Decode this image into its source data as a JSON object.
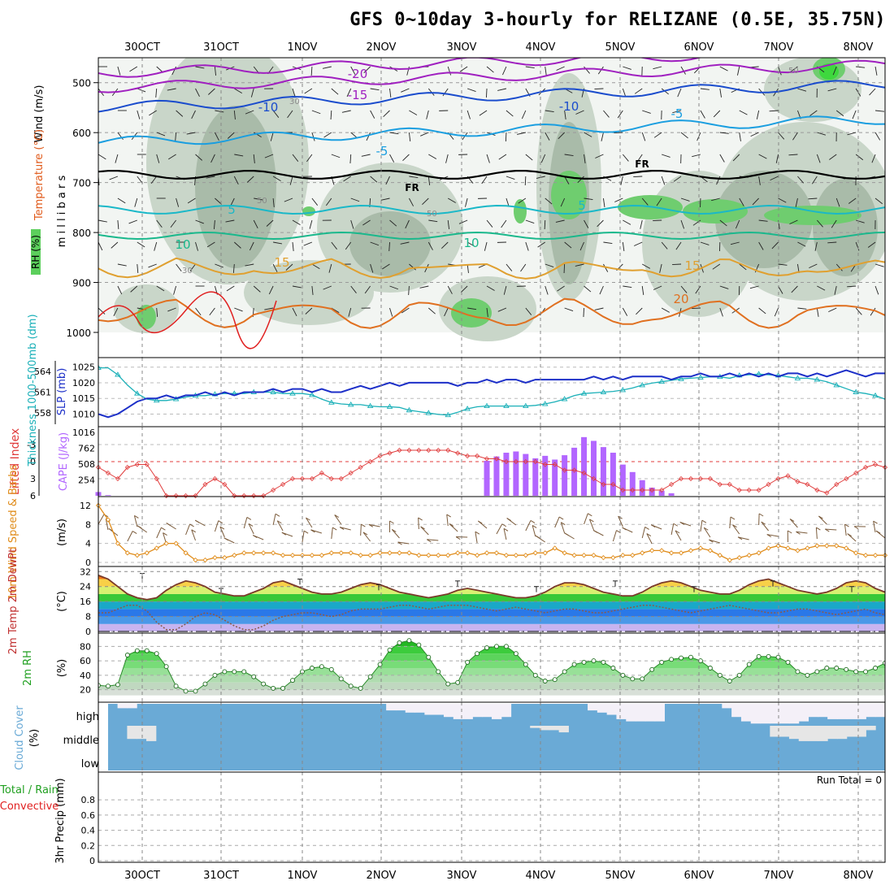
{
  "title": "GFS 0~10day 3-hourly for RELIZANE (0.5E, 35.75N)",
  "dates": [
    "30OCT",
    "31OCT",
    "1NOV",
    "2NOV",
    "3NOV",
    "4NOV",
    "5NOV",
    "6NOV",
    "7NOV",
    "8NOV"
  ],
  "colors": {
    "slp": "#1c2fc8",
    "thickness": "#1ab0b8",
    "lifted": "#e03c3c",
    "cape": "#b266ff",
    "wind": "#e08c1a",
    "barb": "#7a5a3a",
    "rh2m": "#33bb33",
    "cloud": "#6aaad6",
    "cloud_clear": "#f4f0f8",
    "cloud_mid": "#e6e6e6"
  },
  "chart_data": [
    {
      "type": "contour",
      "name": "upper-air cross section",
      "ylabel": "millibars",
      "side_labels": [
        "Wind (m/s)",
        "Temperature (°C)",
        "RH (%)"
      ],
      "levels": [
        500,
        600,
        700,
        800,
        900,
        1000
      ],
      "ylim": [
        450,
        1000
      ],
      "temperature_contours": [
        {
          "label": "-20",
          "values": [
            -20
          ]
        },
        {
          "label": "-15",
          "values": [
            -15
          ]
        },
        {
          "label": "-10",
          "values": [
            -10
          ]
        },
        {
          "label": "-5",
          "values": [
            -5
          ]
        },
        {
          "label": "FR",
          "values": [
            0
          ]
        },
        {
          "label": "5",
          "values": [
            5
          ]
        },
        {
          "label": "10",
          "values": [
            10
          ]
        },
        {
          "label": "15",
          "values": [
            15
          ]
        },
        {
          "label": "20",
          "values": [
            20
          ]
        }
      ],
      "rh_labels": [
        "30",
        "50"
      ]
    },
    {
      "type": "line",
      "name": "SLP and Thickness",
      "ylabel": "SLP (mb)",
      "ylabel2": "Thickness 1000-500mb (dm)",
      "yticks": [
        1010,
        1015,
        1020,
        1025
      ],
      "yticks2": [
        558,
        561,
        564
      ],
      "ylim": [
        1007,
        1027
      ],
      "series": [
        {
          "name": "SLP",
          "values": [
            1010,
            1009,
            1010,
            1012,
            1014,
            1015,
            1015,
            1016,
            1015,
            1016,
            1016,
            1017,
            1016,
            1017,
            1016,
            1017,
            1017,
            1017,
            1018,
            1017,
            1018,
            1018,
            1017,
            1018,
            1017,
            1017,
            1018,
            1019,
            1018,
            1019,
            1020,
            1019,
            1020,
            1020,
            1020,
            1020,
            1020,
            1019,
            1020,
            1020,
            1021,
            1020,
            1021,
            1021,
            1020,
            1021,
            1021,
            1021,
            1021,
            1021,
            1021,
            1022,
            1021,
            1022,
            1021,
            1022,
            1022,
            1022,
            1022,
            1021,
            1022,
            1022,
            1023,
            1022,
            1022,
            1023,
            1022,
            1023,
            1022,
            1023,
            1022,
            1023,
            1023,
            1022,
            1023,
            1022,
            1023,
            1024,
            1023,
            1022,
            1023,
            1023
          ]
        },
        {
          "name": "Thickness",
          "values": [
            564.5,
            564.5,
            563.5,
            562,
            560.8,
            560,
            559.8,
            559.8,
            560,
            560.3,
            560.5,
            560.5,
            560.7,
            560.8,
            560.8,
            560.8,
            561,
            561,
            561,
            560.8,
            560.8,
            560.8,
            560.6,
            560,
            559.5,
            559.3,
            559.2,
            559.2,
            559,
            558.9,
            558.9,
            558.8,
            558.4,
            558.2,
            558,
            557.8,
            557.7,
            558.1,
            558.6,
            558.9,
            559,
            559,
            559,
            559,
            559,
            559.1,
            559.3,
            559.6,
            560,
            560.5,
            560.8,
            560.9,
            561,
            561.1,
            561.3,
            561.6,
            562,
            562.3,
            562.5,
            562.7,
            562.9,
            563,
            563.1,
            563.2,
            563.2,
            563,
            563.4,
            563.5,
            563.6,
            563.5,
            563.4,
            563.2,
            563,
            563,
            562.8,
            562.5,
            562,
            561.5,
            561,
            560.8,
            560.5,
            560
          ]
        }
      ]
    },
    {
      "type": "bar",
      "name": "Lifted Index and CAPE",
      "ylabel": "Lifted Index",
      "ylabel2": "CAPE (J/kg)",
      "yticks": [
        -3,
        0,
        3,
        6
      ],
      "yticks_labels": [
        "-3",
        "0",
        "3",
        "6"
      ],
      "cape_ticks": [
        254,
        508,
        762,
        1016
      ],
      "series": [
        {
          "name": "CAPE",
          "values": [
            60,
            10,
            0,
            0,
            0,
            0,
            0,
            0,
            0,
            0,
            0,
            0,
            0,
            0,
            0,
            0,
            0,
            0,
            0,
            0,
            0,
            0,
            0,
            0,
            0,
            0,
            0,
            0,
            0,
            0,
            0,
            0,
            0,
            0,
            0,
            0,
            0,
            0,
            0,
            0,
            560,
            630,
            690,
            710,
            670,
            600,
            640,
            580,
            650,
            770,
            940,
            880,
            780,
            690,
            500,
            380,
            250,
            130,
            80,
            40,
            0,
            0,
            0,
            0,
            0,
            0,
            0,
            0,
            0,
            0,
            0,
            0,
            0,
            0,
            0,
            0,
            0,
            0,
            0,
            0,
            0,
            0
          ]
        },
        {
          "name": "Lifted Index",
          "values": [
            1,
            2,
            3,
            1,
            0.5,
            0.5,
            3,
            6,
            6,
            7,
            6,
            4,
            3,
            4,
            6,
            7,
            7,
            6,
            5,
            4,
            3,
            3,
            3,
            2,
            3,
            3,
            2,
            1,
            0,
            -1,
            -1.5,
            -2,
            -2,
            -2,
            -2,
            -2,
            -2,
            -1.5,
            -1,
            -1,
            -0.5,
            -0.5,
            0,
            0,
            0,
            0,
            0.5,
            0.5,
            1.5,
            1.5,
            2,
            3,
            4,
            4,
            5,
            5,
            5,
            5,
            5,
            4,
            3,
            3,
            3,
            3,
            4,
            4,
            5,
            5,
            5,
            4,
            3,
            2.5,
            3.5,
            4,
            5,
            5.5,
            4,
            3,
            2,
            1,
            0.5,
            1
          ]
        }
      ]
    },
    {
      "type": "line",
      "name": "10m Wind Speed & Barbs",
      "ylabel": "(m/s)",
      "yticks": [
        0,
        4,
        8,
        12
      ],
      "ylim": [
        0,
        12.5
      ],
      "values": [
        12,
        9,
        4,
        2,
        1.5,
        2,
        3,
        4,
        4,
        2,
        0.5,
        0.5,
        1,
        1,
        1.5,
        2,
        2,
        2,
        2,
        1.5,
        1.5,
        1.5,
        1.5,
        1.5,
        2,
        2,
        2,
        1.5,
        1.5,
        2,
        2,
        2,
        2,
        1.5,
        1.5,
        1.5,
        1.5,
        2,
        2,
        1.5,
        2,
        2,
        1.5,
        1.5,
        1.5,
        2,
        2,
        3,
        2,
        1.5,
        1.5,
        1.5,
        1,
        1,
        1.5,
        1.5,
        2,
        2.5,
        2.5,
        2,
        2,
        2.5,
        3,
        2.5,
        1.5,
        0.5,
        1,
        1.5,
        2,
        3,
        3.5,
        3,
        2.5,
        3,
        3.5,
        3.5,
        3.5,
        3,
        2,
        1.5,
        1.5,
        1.5
      ]
    },
    {
      "type": "area",
      "name": "2m Temp 2m DewPt",
      "ylabel": "(°C)",
      "yticks": [
        0,
        8,
        16,
        24,
        32
      ],
      "ylim": [
        0,
        33
      ],
      "series": [
        {
          "name": "2m Temp",
          "values": [
            30,
            28,
            24,
            20,
            18,
            17,
            18,
            22,
            25,
            27,
            26,
            24,
            21,
            20,
            19,
            19,
            21,
            23,
            26,
            27,
            25,
            23,
            21,
            20,
            20,
            21,
            23,
            25,
            26,
            25,
            23,
            21,
            20,
            19,
            18,
            19,
            20,
            22,
            23,
            22,
            21,
            20,
            19,
            18,
            18,
            19,
            21,
            24,
            26,
            26,
            25,
            23,
            21,
            20,
            19,
            19,
            21,
            24,
            26,
            27,
            26,
            24,
            22,
            21,
            20,
            20,
            22,
            25,
            27,
            28,
            26,
            24,
            22,
            21,
            20,
            21,
            23,
            26,
            27,
            26,
            23,
            21
          ]
        },
        {
          "name": "2m DewPt",
          "values": [
            10,
            10,
            12,
            14,
            14,
            11,
            5,
            1,
            1,
            4,
            8,
            10,
            9,
            6,
            3,
            1,
            1,
            3,
            6,
            8,
            9,
            10,
            10,
            9,
            8,
            9,
            11,
            12,
            12,
            12,
            13,
            14,
            14,
            13,
            12,
            13,
            14,
            14,
            14,
            13,
            12,
            11,
            12,
            13,
            12,
            11,
            10,
            11,
            12,
            12,
            11,
            10,
            10,
            11,
            12,
            13,
            14,
            14,
            13,
            12,
            11,
            10,
            11,
            12,
            13,
            14,
            13,
            12,
            11,
            10,
            10,
            11,
            12,
            12,
            11,
            10,
            9,
            10,
            11,
            12,
            10,
            9
          ]
        },
        {
          "name": "Temp Min/Max",
          "values": [
            28,
            20,
            25,
            22,
            24,
            21,
            24,
            21,
            24,
            21
          ]
        }
      ]
    },
    {
      "type": "area",
      "name": "2m RH",
      "ylabel": "(%)",
      "yticks": [
        20,
        40,
        60,
        80
      ],
      "ylim": [
        5,
        95
      ],
      "values": [
        26,
        25,
        27,
        68,
        74,
        74,
        70,
        52,
        25,
        18,
        18,
        28,
        40,
        45,
        45,
        45,
        38,
        28,
        22,
        22,
        33,
        45,
        50,
        52,
        48,
        35,
        25,
        22,
        38,
        55,
        75,
        85,
        88,
        82,
        65,
        45,
        28,
        30,
        58,
        70,
        78,
        80,
        80,
        70,
        55,
        40,
        32,
        34,
        45,
        55,
        58,
        60,
        58,
        50,
        40,
        35,
        35,
        48,
        58,
        62,
        64,
        65,
        60,
        50,
        40,
        32,
        40,
        55,
        66,
        66,
        65,
        58,
        45,
        40,
        45,
        50,
        50,
        48,
        45,
        45,
        50,
        57
      ]
    },
    {
      "type": "heatmap",
      "name": "Cloud Cover",
      "ylabel": "(%)",
      "rows": [
        "high",
        "middle",
        "low"
      ],
      "high": [
        100,
        100,
        80,
        80,
        100,
        100,
        100,
        100,
        100,
        100,
        100,
        100,
        100,
        100,
        100,
        100,
        100,
        100,
        100,
        100,
        100,
        100,
        100,
        100,
        100,
        100,
        100,
        100,
        100,
        100,
        70,
        70,
        60,
        60,
        50,
        50,
        40,
        30,
        30,
        40,
        40,
        30,
        40,
        100,
        100,
        100,
        100,
        100,
        100,
        100,
        100,
        70,
        60,
        50,
        30,
        20,
        20,
        20,
        20,
        100,
        100,
        100,
        100,
        100,
        100,
        80,
        40,
        20,
        10,
        10,
        10,
        10,
        10,
        20,
        40,
        40,
        30,
        30,
        30,
        30,
        40,
        40
      ],
      "middle": [
        100,
        100,
        100,
        40,
        40,
        30,
        100,
        100,
        100,
        100,
        100,
        100,
        100,
        100,
        100,
        100,
        100,
        100,
        100,
        100,
        100,
        100,
        100,
        100,
        100,
        100,
        100,
        100,
        100,
        100,
        100,
        100,
        100,
        100,
        100,
        100,
        100,
        100,
        100,
        100,
        100,
        100,
        100,
        100,
        100,
        90,
        80,
        80,
        70,
        100,
        100,
        100,
        100,
        100,
        100,
        100,
        100,
        100,
        100,
        100,
        100,
        100,
        100,
        100,
        100,
        100,
        100,
        100,
        100,
        100,
        50,
        50,
        40,
        30,
        30,
        30,
        40,
        40,
        50,
        50,
        80,
        100
      ]
    },
    {
      "type": "bar",
      "name": "3hr Precip",
      "ylabel": "3hr Precip (mm)",
      "side_labels": [
        "Total / Rain",
        "Convective"
      ],
      "yticks": [
        0,
        0.2,
        0.4,
        0.6,
        0.8
      ],
      "ylim": [
        0,
        1
      ],
      "values": [],
      "run_total": "Run Total = 0"
    }
  ]
}
